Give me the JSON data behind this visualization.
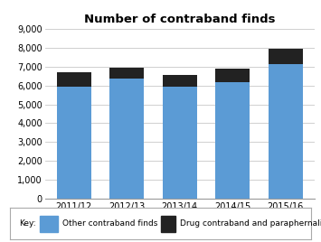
{
  "title": "Number of contraband finds",
  "categories": [
    "2011/12",
    "2012/13",
    "2013/14",
    "2014/15",
    "2015/16"
  ],
  "other_contraband": [
    5950,
    6354,
    5941,
    6166,
    7119
  ],
  "drug_contraband": [
    768,
    607,
    625,
    747,
    822
  ],
  "other_color": "#5B9BD5",
  "drug_color": "#222222",
  "ylim": [
    0,
    9000
  ],
  "yticks": [
    0,
    1000,
    2000,
    3000,
    4000,
    5000,
    6000,
    7000,
    8000,
    9000
  ],
  "ytick_labels": [
    "0",
    "1,000",
    "2,000",
    "3,000",
    "4,000",
    "5,000",
    "6,000",
    "7,000",
    "8,000",
    "9,000"
  ],
  "legend_other": "Other contraband finds",
  "legend_drug": "Drug contraband and paraphernalia finds",
  "background_color": "#FFFFFF",
  "grid_color": "#C8C8C8",
  "bar_width": 0.65,
  "title_fontsize": 9.5,
  "tick_fontsize": 7,
  "legend_fontsize": 6.5,
  "key_label": "Key:"
}
